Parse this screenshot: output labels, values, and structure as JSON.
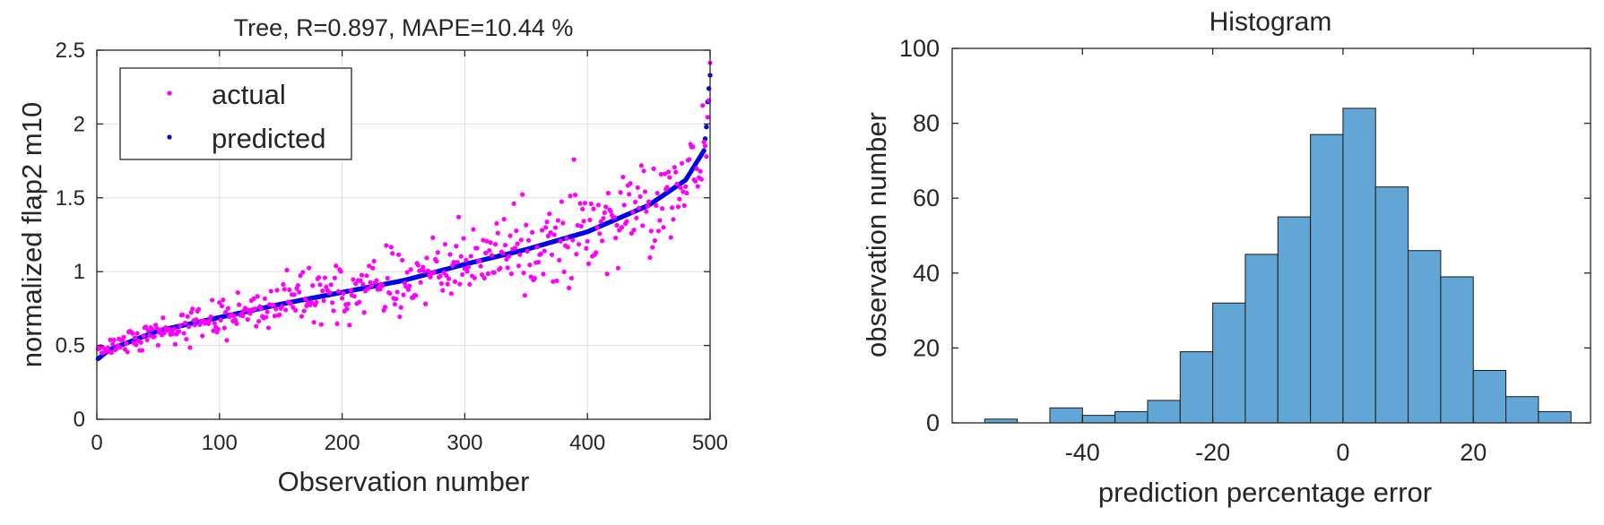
{
  "colors": {
    "actual": "#ff00ff",
    "predicted": "#0000e6",
    "bar_fill": "#61a6d5",
    "bar_edge": "#1a1a1a"
  },
  "chart_data": [
    {
      "type": "scatter",
      "title": "Tree, R=0.897, MAPE=10.44 %",
      "xlabel": "Observation number",
      "ylabel": "normalized flap2 m10",
      "xlim": [
        0,
        500
      ],
      "ylim": [
        0,
        2.5
      ],
      "xticks": [
        0,
        100,
        200,
        300,
        400,
        500
      ],
      "yticks": [
        0,
        0.5,
        1,
        1.5,
        2,
        2.5
      ],
      "ytick_labels": [
        "0",
        "0.5",
        "1",
        "1.5",
        "2",
        "2.5"
      ],
      "grid": true,
      "legend": {
        "location": "top-left",
        "entries": [
          "actual",
          "predicted"
        ]
      },
      "series": [
        {
          "name": "actual",
          "color": "#ff00ff",
          "marker": "dot",
          "n_points": 500,
          "description_values": "scattered around predicted, spread about +/-0.25, range approx 0.45 to 2.3"
        },
        {
          "name": "predicted",
          "color": "#0000e6",
          "marker": "dot",
          "n_points": 500,
          "sorted": true,
          "control_points": [
            [
              1,
              0.41
            ],
            [
              10,
              0.47
            ],
            [
              50,
              0.6
            ],
            [
              100,
              0.69
            ],
            [
              150,
              0.78
            ],
            [
              200,
              0.86
            ],
            [
              250,
              0.94
            ],
            [
              300,
              1.05
            ],
            [
              350,
              1.15
            ],
            [
              400,
              1.27
            ],
            [
              450,
              1.45
            ],
            [
              480,
              1.62
            ],
            [
              495,
              1.82
            ],
            [
              497,
              1.98
            ],
            [
              498,
              2.15
            ],
            [
              500,
              2.33
            ]
          ]
        }
      ]
    },
    {
      "type": "bar",
      "subtype": "histogram",
      "title": "Histogram",
      "xlabel": "prediction percentage error",
      "ylabel": "observation number",
      "xlim": [
        -60,
        38
      ],
      "ylim": [
        0,
        100
      ],
      "xticks": [
        -40,
        -20,
        0,
        20
      ],
      "yticks": [
        0,
        20,
        40,
        60,
        80,
        100
      ],
      "bin_edges": [
        -55,
        -50,
        -45,
        -40,
        -35,
        -30,
        -25,
        -20,
        -15,
        -10,
        -5,
        0,
        5,
        10,
        15,
        20,
        25,
        30,
        35
      ],
      "values": [
        1,
        0,
        4,
        2,
        3,
        6,
        19,
        32,
        45,
        55,
        77,
        84,
        63,
        46,
        39,
        14,
        7,
        3
      ],
      "grid": false
    }
  ]
}
